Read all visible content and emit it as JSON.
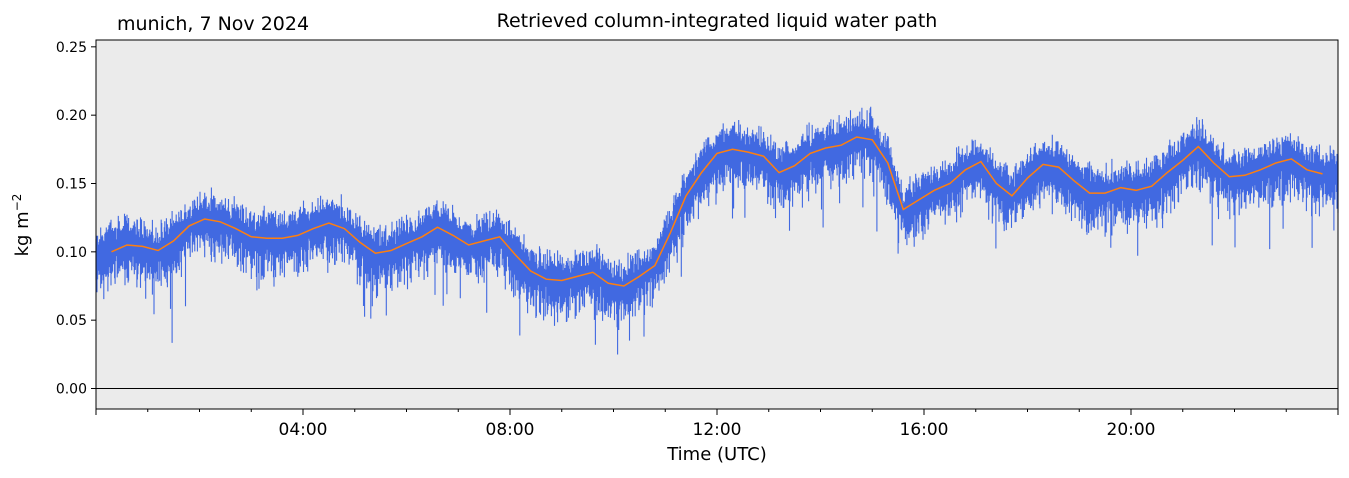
{
  "corner_title": "munich, 7 Nov 2024",
  "chart_data": {
    "type": "line",
    "title": "Retrieved column-integrated liquid water path",
    "xlabel": "Time (UTC)",
    "ylabel_base": "kg m",
    "ylabel_exp": "−2",
    "xlim_hours": [
      0,
      24
    ],
    "ylim": [
      -0.015,
      0.255
    ],
    "x_ticks": [
      {
        "hour": 4,
        "label": "04:00"
      },
      {
        "hour": 8,
        "label": "08:00"
      },
      {
        "hour": 12,
        "label": "12:00"
      },
      {
        "hour": 16,
        "label": "16:00"
      },
      {
        "hour": 20,
        "label": "20:00"
      }
    ],
    "y_ticks": [
      {
        "value": 0.0,
        "label": "0.00"
      },
      {
        "value": 0.05,
        "label": "0.05"
      },
      {
        "value": 0.1,
        "label": "0.10"
      },
      {
        "value": 0.15,
        "label": "0.15"
      },
      {
        "value": 0.2,
        "label": "0.20"
      },
      {
        "value": 0.25,
        "label": "0.25"
      }
    ],
    "zero_line": 0.0,
    "background": "#ebebeb",
    "series": [
      {
        "role": "raw",
        "color": "#4169e1",
        "hours": [
          0.0,
          0.3,
          0.6,
          0.9,
          1.2,
          1.5,
          1.8,
          2.1,
          2.4,
          2.7,
          3.0,
          3.3,
          3.6,
          3.9,
          4.2,
          4.5,
          4.8,
          5.1,
          5.4,
          5.7,
          6.0,
          6.3,
          6.6,
          6.9,
          7.2,
          7.5,
          7.8,
          8.1,
          8.4,
          8.7,
          9.0,
          9.3,
          9.6,
          9.9,
          10.2,
          10.5,
          10.8,
          11.1,
          11.4,
          11.7,
          12.0,
          12.3,
          12.6,
          12.9,
          13.2,
          13.5,
          13.8,
          14.1,
          14.4,
          14.7,
          15.0,
          15.3,
          15.6,
          15.9,
          16.2,
          16.5,
          16.8,
          17.1,
          17.4,
          17.7,
          18.0,
          18.3,
          18.6,
          18.9,
          19.2,
          19.5,
          19.8,
          20.1,
          20.4,
          20.7,
          21.0,
          21.3,
          21.6,
          21.9,
          22.2,
          22.5,
          22.8,
          23.1,
          23.4,
          23.7,
          24.0
        ],
        "values": [
          0.095,
          0.103,
          0.107,
          0.104,
          0.1,
          0.108,
          0.12,
          0.125,
          0.122,
          0.118,
          0.11,
          0.111,
          0.11,
          0.113,
          0.118,
          0.122,
          0.118,
          0.106,
          0.098,
          0.1,
          0.106,
          0.111,
          0.118,
          0.112,
          0.104,
          0.108,
          0.112,
          0.098,
          0.085,
          0.08,
          0.078,
          0.082,
          0.086,
          0.076,
          0.074,
          0.082,
          0.09,
          0.115,
          0.142,
          0.158,
          0.172,
          0.175,
          0.173,
          0.17,
          0.158,
          0.163,
          0.172,
          0.176,
          0.178,
          0.184,
          0.183,
          0.165,
          0.13,
          0.138,
          0.145,
          0.15,
          0.16,
          0.166,
          0.15,
          0.142,
          0.154,
          0.164,
          0.162,
          0.152,
          0.143,
          0.143,
          0.147,
          0.145,
          0.148,
          0.158,
          0.168,
          0.177,
          0.165,
          0.155,
          0.156,
          0.16,
          0.165,
          0.168,
          0.16,
          0.158,
          0.156
        ],
        "spread": 0.022
      },
      {
        "role": "smoothed",
        "color": "#ff7f0e",
        "hours": [
          0.3,
          0.6,
          0.9,
          1.2,
          1.5,
          1.8,
          2.1,
          2.4,
          2.7,
          3.0,
          3.3,
          3.6,
          3.9,
          4.2,
          4.5,
          4.8,
          5.1,
          5.4,
          5.7,
          6.0,
          6.3,
          6.6,
          6.9,
          7.2,
          7.5,
          7.8,
          8.1,
          8.4,
          8.7,
          9.0,
          9.3,
          9.6,
          9.9,
          10.2,
          10.5,
          10.8,
          11.1,
          11.4,
          11.7,
          12.0,
          12.3,
          12.6,
          12.9,
          13.2,
          13.5,
          13.8,
          14.1,
          14.4,
          14.7,
          15.0,
          15.3,
          15.6,
          15.9,
          16.2,
          16.5,
          16.8,
          17.1,
          17.4,
          17.7,
          18.0,
          18.3,
          18.6,
          18.9,
          19.2,
          19.5,
          19.8,
          20.1,
          20.4,
          20.7,
          21.0,
          21.3,
          21.6,
          21.9,
          22.2,
          22.5,
          22.8,
          23.1,
          23.4,
          23.7
        ],
        "values": [
          0.1,
          0.105,
          0.104,
          0.101,
          0.108,
          0.119,
          0.124,
          0.122,
          0.117,
          0.111,
          0.11,
          0.11,
          0.112,
          0.117,
          0.121,
          0.117,
          0.107,
          0.099,
          0.101,
          0.106,
          0.111,
          0.118,
          0.112,
          0.105,
          0.108,
          0.111,
          0.098,
          0.086,
          0.08,
          0.079,
          0.082,
          0.085,
          0.077,
          0.075,
          0.082,
          0.09,
          0.114,
          0.141,
          0.158,
          0.172,
          0.175,
          0.173,
          0.17,
          0.158,
          0.163,
          0.172,
          0.176,
          0.178,
          0.184,
          0.182,
          0.165,
          0.131,
          0.138,
          0.145,
          0.15,
          0.16,
          0.166,
          0.15,
          0.141,
          0.154,
          0.164,
          0.162,
          0.152,
          0.143,
          0.143,
          0.147,
          0.145,
          0.148,
          0.158,
          0.167,
          0.177,
          0.165,
          0.155,
          0.156,
          0.16,
          0.165,
          0.168,
          0.16,
          0.157
        ]
      }
    ]
  }
}
